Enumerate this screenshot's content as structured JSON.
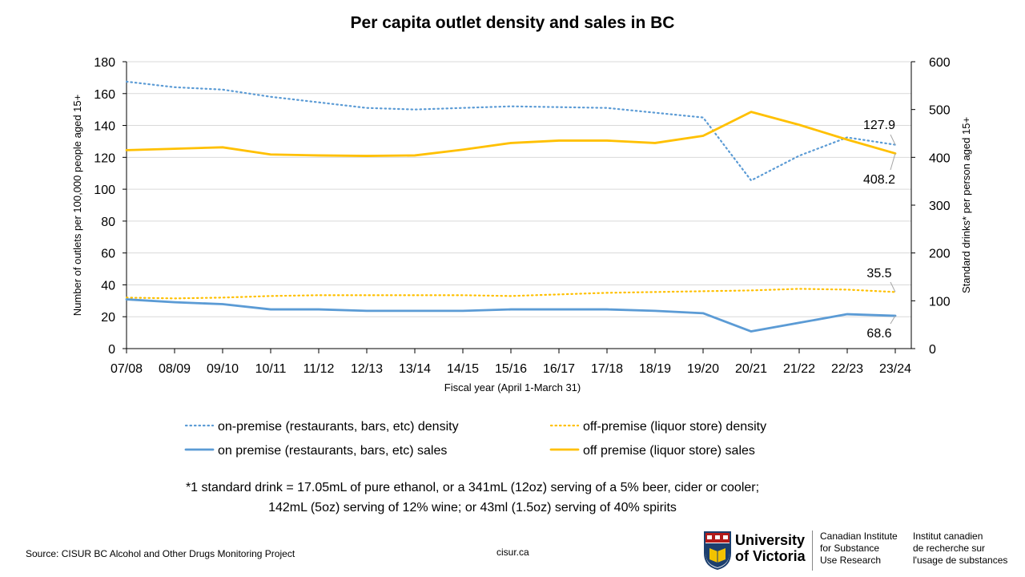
{
  "chart_data": {
    "type": "line",
    "title": "Per capita outlet density and sales in BC",
    "xlabel": "Fiscal year (April 1-March 31)",
    "ylabel_left": "Number of outlets per 100,000 people aged 15+",
    "ylabel_right": "Standard drinks* per person aged 15+",
    "ylim_left": [
      0,
      180
    ],
    "ylim_right": [
      0,
      600
    ],
    "yticks_left": [
      "0",
      "20",
      "40",
      "60",
      "80",
      "100",
      "120",
      "140",
      "160",
      "180"
    ],
    "yticks_right": [
      "0",
      "100",
      "200",
      "300",
      "400",
      "500",
      "600"
    ],
    "categories": [
      "07/08",
      "08/09",
      "09/10",
      "10/11",
      "11/12",
      "12/13",
      "13/14",
      "14/15",
      "15/16",
      "16/17",
      "17/18",
      "18/19",
      "19/20",
      "20/21",
      "21/22",
      "22/23",
      "23/24"
    ],
    "grid": "horizontal",
    "legend_placement": "bottom",
    "series": [
      {
        "name": "on-premise (restaurants, bars, etc) density",
        "axis": "left",
        "style": "dotted",
        "color": "#5B9BD5",
        "values": [
          167.5,
          164,
          162.5,
          158,
          154.5,
          151,
          150,
          151,
          152,
          151.5,
          151,
          148,
          145,
          105.5,
          121,
          132.5,
          127.9
        ]
      },
      {
        "name": "off-premise (liquor store) density",
        "axis": "left",
        "style": "dotted",
        "color": "#FFC000",
        "values": [
          32,
          31.5,
          32,
          33,
          33.5,
          33.5,
          33.5,
          33.5,
          33,
          34,
          35,
          35.5,
          36,
          36.5,
          37.5,
          37,
          35.5
        ]
      },
      {
        "name": "on premise (restaurants, bars, etc) sales",
        "axis": "right",
        "style": "solid",
        "color": "#5B9BD5",
        "values": [
          103,
          97,
          93,
          82,
          82,
          79,
          79,
          79,
          82,
          82,
          82,
          79,
          74,
          36,
          54,
          72,
          68.6
        ]
      },
      {
        "name": "off premise (liquor store) sales",
        "axis": "right",
        "style": "solid",
        "color": "#FFC000",
        "values": [
          415,
          418,
          421,
          406,
          404,
          403,
          404,
          416,
          430,
          435,
          435,
          430,
          445,
          495,
          468,
          437,
          408.2
        ]
      }
    ],
    "data_labels": [
      {
        "series": 0,
        "index": 16,
        "text": "127.9"
      },
      {
        "series": 3,
        "index": 16,
        "text": "408.2"
      },
      {
        "series": 1,
        "index": 16,
        "text": "35.5"
      },
      {
        "series": 2,
        "index": 16,
        "text": "68.6"
      }
    ]
  },
  "footnote": {
    "line1": "*1 standard drink = 17.05mL of pure ethanol, or a 341mL (12oz) serving of a 5% beer, cider or cooler;",
    "line2": "142mL (5oz) serving of 12% wine; or 43ml (1.5oz) serving of 40% spirits"
  },
  "source": "Source: CISUR BC Alcohol and Other Drugs Monitoring Project",
  "site": "cisur.ca",
  "logo": {
    "university_line1": "University",
    "university_line2": "of Victoria",
    "en_line1": "Canadian Institute",
    "en_line2": "for Substance",
    "en_line3": "Use Research",
    "fr_line1": "Institut canadien",
    "fr_line2": "de recherche sur",
    "fr_line3": "l'usage de substances"
  }
}
